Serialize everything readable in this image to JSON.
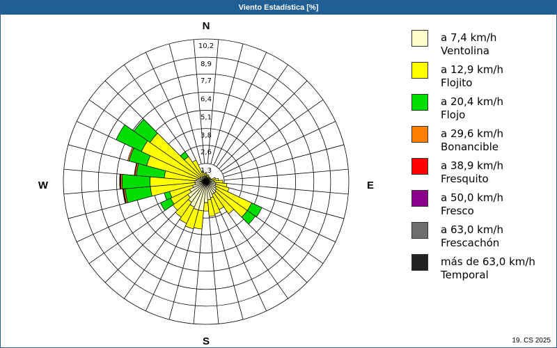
{
  "window": {
    "title": "Viento Estadística [%]"
  },
  "footer": {
    "text": "19. CS 2025"
  },
  "compass": {
    "n": "N",
    "e": "E",
    "s": "S",
    "w": "W"
  },
  "chart_data": {
    "type": "rose",
    "title": "Viento Estadística [%]",
    "unit": "%",
    "rmax": 10.2,
    "ring_labels": [
      "1,3",
      "2,6",
      "3,8",
      "5,1",
      "6,4",
      "7,7",
      "8,9",
      "10,2"
    ],
    "ring_values": [
      1.3,
      2.6,
      3.8,
      5.1,
      6.4,
      7.7,
      8.9,
      10.2
    ],
    "sector_count": 36,
    "directions_deg": [
      0,
      10,
      20,
      30,
      40,
      50,
      60,
      70,
      80,
      90,
      100,
      110,
      120,
      130,
      140,
      150,
      160,
      170,
      180,
      190,
      200,
      210,
      220,
      230,
      240,
      250,
      260,
      270,
      280,
      290,
      300,
      310,
      320,
      330,
      340,
      350
    ],
    "series": [
      {
        "name": "a 7,4 km/h",
        "desc": "Ventolina",
        "color": "#ffffcc",
        "values": [
          0.4,
          0.3,
          0.3,
          0.3,
          0.3,
          0.3,
          0.3,
          0.4,
          0.5,
          0.6,
          0.7,
          0.7,
          0.8,
          0.9,
          1.0,
          1.0,
          1.2,
          1.3,
          1.5,
          2.1,
          2.1,
          2.0,
          1.8,
          1.6,
          1.3,
          1.0,
          0.8,
          0.8,
          0.7,
          0.6,
          0.5,
          0.5,
          0.4,
          0.4,
          0.4,
          0.4
        ]
      },
      {
        "name": "a 12,9 km/h",
        "desc": "Flojito",
        "color": "#ffff00",
        "values": [
          0.2,
          0.2,
          0.2,
          0.1,
          0.1,
          0.1,
          0.1,
          0.3,
          0.4,
          0.6,
          0.8,
          1.0,
          2.8,
          2.7,
          1.8,
          1.2,
          1.2,
          1.2,
          0.6,
          1.3,
          1.4,
          1.3,
          1.3,
          1.3,
          1.5,
          1.7,
          3.2,
          3.2,
          2.3,
          3.8,
          4.6,
          4.4,
          1.8,
          1.3,
          0.4,
          0.2
        ]
      },
      {
        "name": "a 20,4 km/h",
        "desc": "Flojo",
        "color": "#00dd00",
        "values": [
          0,
          0,
          0,
          0,
          0,
          0,
          0,
          0,
          0,
          0,
          0,
          0,
          0.8,
          0.7,
          0,
          0,
          0,
          0,
          0,
          0,
          0,
          0,
          0,
          0,
          0.8,
          0.4,
          1.8,
          2.0,
          2.0,
          1.3,
          2.0,
          1.4,
          0.4,
          0,
          0,
          0
        ]
      },
      {
        "name": "a 29,6 km/h",
        "desc": "Bonancible",
        "color": "#ff8000",
        "values": [
          0,
          0,
          0,
          0,
          0,
          0,
          0,
          0,
          0,
          0,
          0,
          0,
          0,
          0,
          0,
          0,
          0,
          0,
          0,
          0,
          0,
          0,
          0,
          0,
          0,
          0,
          0.1,
          0.1,
          0.1,
          0.1,
          0,
          0,
          0,
          0,
          0,
          0
        ]
      },
      {
        "name": "a 38,9 km/h",
        "desc": "Fresquito",
        "color": "#ff0000",
        "values": [
          0,
          0,
          0,
          0,
          0,
          0,
          0,
          0,
          0,
          0,
          0,
          0,
          0,
          0,
          0,
          0,
          0,
          0,
          0,
          0,
          0,
          0,
          0,
          0,
          0,
          0,
          0.05,
          0.05,
          0.05,
          0,
          0,
          0,
          0,
          0,
          0,
          0
        ]
      },
      {
        "name": "a 50,0 km/h",
        "desc": "Fresco",
        "color": "#8b008b",
        "values": [
          0,
          0,
          0,
          0,
          0,
          0,
          0,
          0,
          0,
          0,
          0,
          0,
          0,
          0,
          0,
          0,
          0,
          0,
          0,
          0,
          0,
          0,
          0,
          0,
          0,
          0,
          0.03,
          0.03,
          0,
          0,
          0,
          0,
          0,
          0,
          0,
          0
        ]
      },
      {
        "name": "a 63,0 km/h",
        "desc": "Frescachón",
        "color": "#6e6e6e",
        "values": [
          0,
          0,
          0,
          0,
          0,
          0,
          0,
          0,
          0,
          0,
          0,
          0,
          0,
          0,
          0,
          0,
          0,
          0,
          0,
          0,
          0,
          0,
          0,
          0,
          0,
          0,
          0,
          0,
          0,
          0,
          0,
          0,
          0,
          0,
          0,
          0
        ]
      },
      {
        "name": "más de 63,0 km/h",
        "desc": "Temporal",
        "color": "#222222",
        "values": [
          0,
          0,
          0,
          0,
          0,
          0,
          0,
          0,
          0,
          0,
          0,
          0,
          0,
          0,
          0,
          0,
          0,
          0,
          0,
          0,
          0,
          0,
          0,
          0,
          0,
          0,
          0,
          0,
          0,
          0,
          0,
          0,
          0,
          0,
          0,
          0
        ]
      }
    ]
  }
}
